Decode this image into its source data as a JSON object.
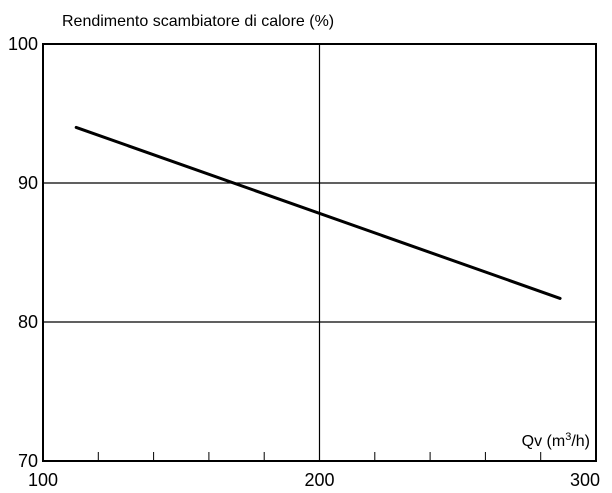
{
  "chart_data": {
    "type": "line",
    "ylabel": "Rendimento scambiatore di calore (%)",
    "xlabel_main": "Qv (m",
    "xlabel_sup": "3",
    "xlabel_tail": "/h)",
    "xlim": [
      100,
      300
    ],
    "ylim": [
      70,
      100
    ],
    "x_ticks": [
      100,
      200,
      300
    ],
    "y_ticks": [
      70,
      80,
      90,
      100
    ],
    "x_minor_step": 20,
    "grid": true,
    "series": [
      {
        "x": [
          112,
          287
        ],
        "y": [
          94.0,
          81.7
        ]
      }
    ],
    "colors": {
      "line": "#000000",
      "grid": "#000000"
    }
  }
}
